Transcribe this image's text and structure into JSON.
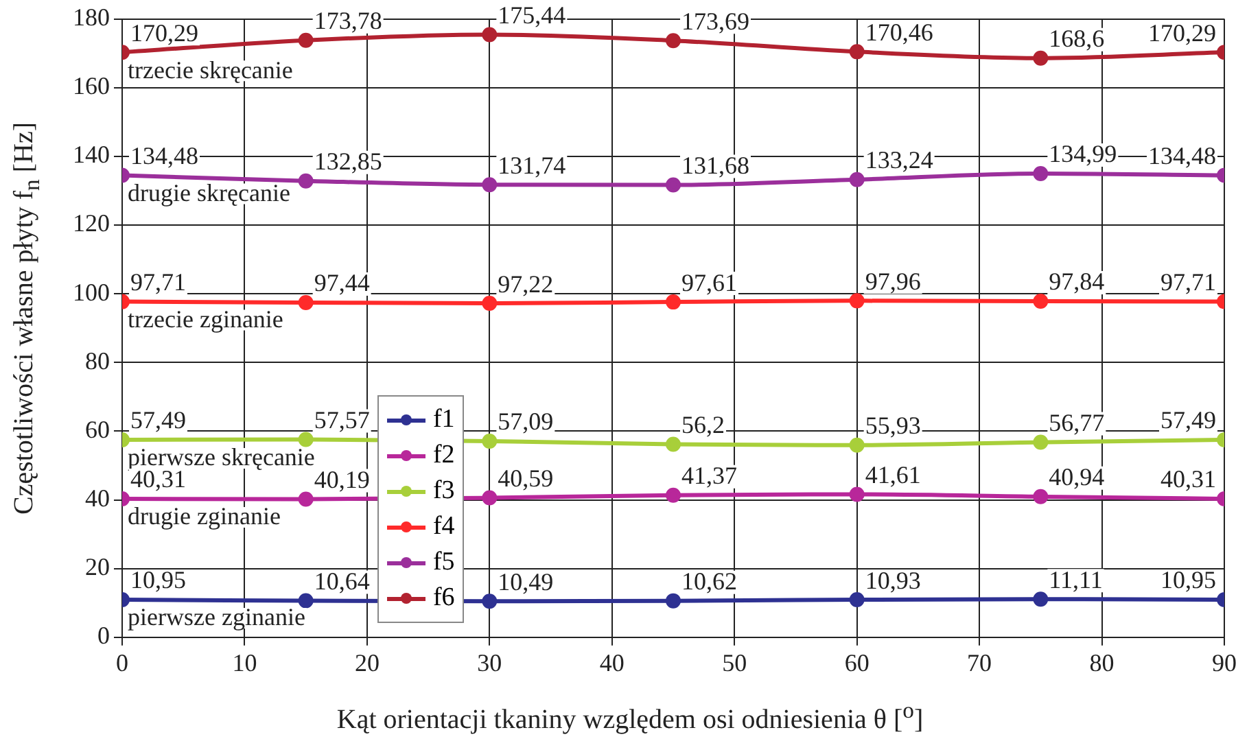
{
  "chart_data": {
    "type": "line",
    "xlabel": "Kąt orientacji tkaniny względem osi odniesienia θ [$^{o}$]",
    "ylabel": "Częstotliwości własne płyty f$_{n}$ [Hz]",
    "x": [
      0,
      15,
      30,
      45,
      60,
      75,
      90
    ],
    "xlim": [
      0,
      90
    ],
    "xticks": [
      0,
      10,
      20,
      30,
      40,
      50,
      60,
      70,
      80,
      90
    ],
    "ylim": [
      0,
      180
    ],
    "yticks": [
      0,
      20,
      40,
      60,
      80,
      100,
      120,
      140,
      160,
      180
    ],
    "grid": true,
    "legend": "bottom left",
    "marker": "circle",
    "line_style": "solid",
    "series": [
      {
        "name": "f1",
        "color": "#2e3192",
        "values": [
          10.95,
          10.64,
          10.49,
          10.62,
          10.93,
          11.11,
          10.95
        ],
        "value_labels": [
          "10,95",
          "10,64",
          "10,49",
          "10,62",
          "10,93",
          "11,11",
          "10,95"
        ]
      },
      {
        "name": "f2",
        "color": "#b8279a",
        "values": [
          40.31,
          40.19,
          40.59,
          41.37,
          41.61,
          40.94,
          40.31
        ],
        "value_labels": [
          "40,31",
          "40,19",
          "40,59",
          "41,37",
          "41,61",
          "40,94",
          "40,31"
        ]
      },
      {
        "name": "f3",
        "color": "#a8cf3a",
        "values": [
          57.49,
          57.57,
          57.09,
          56.2,
          55.93,
          56.77,
          57.49
        ],
        "value_labels": [
          "57,49",
          "57,57",
          "57,09",
          "56,2",
          "55,93",
          "56,77",
          "57,49"
        ]
      },
      {
        "name": "f4",
        "color": "#ff2a2a",
        "values": [
          97.71,
          97.44,
          97.22,
          97.61,
          97.96,
          97.84,
          97.71
        ],
        "value_labels": [
          "97,71",
          "97,44",
          "97,22",
          "97,61",
          "97,96",
          "97,84",
          "97,71"
        ]
      },
      {
        "name": "f5",
        "color": "#9b2f9b",
        "values": [
          134.48,
          132.85,
          131.74,
          131.68,
          133.24,
          134.99,
          134.48
        ],
        "value_labels": [
          "134,48",
          "132,85",
          "131,74",
          "131,68",
          "133,24",
          "134,99",
          "134,48"
        ]
      },
      {
        "name": "f6",
        "color": "#b22230",
        "values": [
          170.29,
          173.78,
          175.44,
          173.69,
          170.46,
          168.6,
          170.29
        ],
        "value_labels": [
          "170,29",
          "173,78",
          "175,44",
          "173,69",
          "170,46",
          "168,6",
          "170,29"
        ]
      }
    ],
    "annotations": [
      "trzecie skręcanie",
      "drugie skręcanie",
      "trzecie zginanie",
      "pierwsze skręcanie",
      "drugie zginanie",
      "pierwsze zginanie"
    ]
  }
}
